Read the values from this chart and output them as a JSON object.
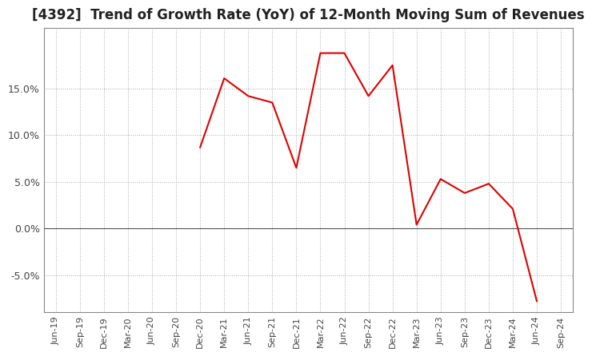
{
  "title": "[4392]  Trend of Growth Rate (YoY) of 12-Month Moving Sum of Revenues",
  "title_fontsize": 12,
  "line_color": "#dd0000",
  "background_color": "#ffffff",
  "plot_bg_color": "#ffffff",
  "grid_color": "#aaaaaa",
  "x_labels": [
    "Jun-19",
    "Sep-19",
    "Dec-19",
    "Mar-20",
    "Jun-20",
    "Sep-20",
    "Dec-20",
    "Mar-21",
    "Jun-21",
    "Sep-21",
    "Dec-21",
    "Mar-22",
    "Jun-22",
    "Sep-22",
    "Dec-22",
    "Mar-23",
    "Jun-23",
    "Sep-23",
    "Dec-23",
    "Mar-24",
    "Jun-24",
    "Sep-24"
  ],
  "y_values": [
    null,
    null,
    null,
    null,
    null,
    null,
    8.7,
    16.1,
    14.2,
    13.5,
    6.5,
    18.8,
    18.8,
    14.2,
    17.5,
    0.4,
    5.3,
    3.8,
    4.8,
    2.1,
    -7.8,
    null
  ],
  "ylim": [
    -9.0,
    21.5
  ],
  "yticks": [
    -5.0,
    0.0,
    5.0,
    10.0,
    15.0
  ]
}
